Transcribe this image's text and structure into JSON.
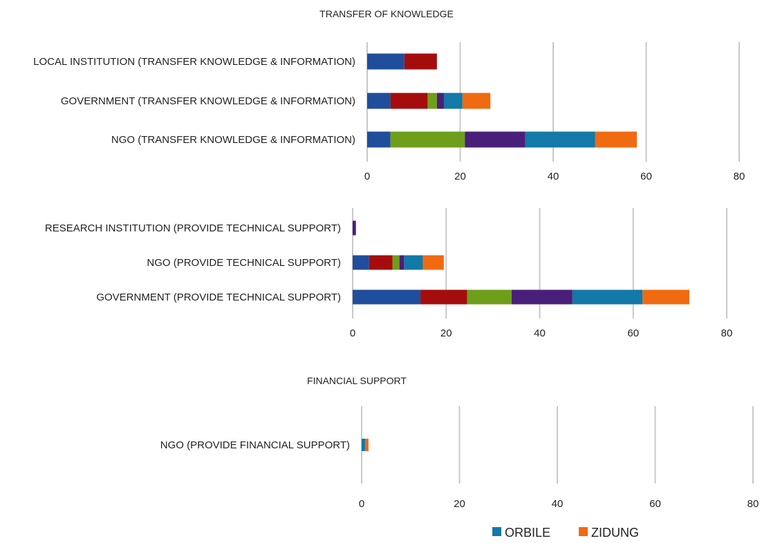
{
  "chart_data": [
    {
      "type": "bar",
      "orientation": "horizontal",
      "stacked": true,
      "title": "TRANSFER OF KNOWLEDGE",
      "categories": [
        "LOCAL INSTITUTION (TRANSFER KNOWLEDGE & INFORMATION)",
        "GOVERNMENT (TRANSFER KNOWLEDGE & INFORMATION)",
        "NGO (TRANSFER KNOWLEDGE & INFORMATION)"
      ],
      "series": [
        {
          "color": "#1f4e9c",
          "values": [
            8,
            5,
            5
          ]
        },
        {
          "color": "#a50d0d",
          "values": [
            7,
            8,
            0
          ]
        },
        {
          "color": "#6f9e1a",
          "values": [
            0,
            2,
            16
          ]
        },
        {
          "color": "#4a1f7a",
          "values": [
            0,
            1.5,
            13
          ]
        },
        {
          "color": "#1279a8",
          "values": [
            0,
            4,
            15
          ]
        },
        {
          "color": "#f06a11",
          "values": [
            0,
            6,
            9
          ]
        }
      ],
      "xlim": [
        0,
        80
      ],
      "xticks": [
        "0",
        "20",
        "40",
        "60",
        "80"
      ],
      "grid": true
    },
    {
      "type": "bar",
      "orientation": "horizontal",
      "stacked": true,
      "title": "",
      "categories": [
        "RESEARCH INSTITUTION (PROVIDE TECHNICAL SUPPORT)",
        "NGO (PROVIDE TECHNICAL SUPPORT)",
        "GOVERNMENT (PROVIDE TECHNICAL SUPPORT)"
      ],
      "series": [
        {
          "color": "#1f4e9c",
          "values": [
            0,
            3.5,
            14.5
          ]
        },
        {
          "color": "#a50d0d",
          "values": [
            0,
            5,
            10
          ]
        },
        {
          "color": "#6f9e1a",
          "values": [
            0,
            1.5,
            9.5
          ]
        },
        {
          "color": "#4a1f7a",
          "values": [
            0.7,
            1,
            13
          ]
        },
        {
          "color": "#1279a8",
          "values": [
            0,
            4,
            15
          ]
        },
        {
          "color": "#f06a11",
          "values": [
            0,
            4.5,
            10
          ]
        }
      ],
      "xlim": [
        0,
        80
      ],
      "xticks": [
        "0",
        "20",
        "40",
        "60",
        "80"
      ],
      "grid": true
    },
    {
      "type": "bar",
      "orientation": "horizontal",
      "stacked": true,
      "title": "FINANCIAL SUPPORT",
      "categories": [
        "NGO (PROVIDE FINANCIAL SUPPORT)"
      ],
      "series": [
        {
          "color": "#1f4e9c",
          "values": [
            0
          ]
        },
        {
          "color": "#a50d0d",
          "values": [
            0
          ]
        },
        {
          "color": "#6f9e1a",
          "values": [
            0
          ]
        },
        {
          "color": "#4a1f7a",
          "values": [
            0
          ]
        },
        {
          "color": "#1279a8",
          "values": [
            0.7
          ]
        },
        {
          "color": "#f06a11",
          "values": [
            0.7
          ]
        }
      ],
      "xlim": [
        0,
        80
      ],
      "xticks": [
        "0",
        "20",
        "40",
        "60",
        "80"
      ],
      "grid": true
    }
  ],
  "legend": {
    "position": "bottom-right",
    "items": [
      {
        "label": "ORBILE",
        "color": "#1279a8"
      },
      {
        "label": "ZIDUNG",
        "color": "#f06a11"
      }
    ]
  }
}
